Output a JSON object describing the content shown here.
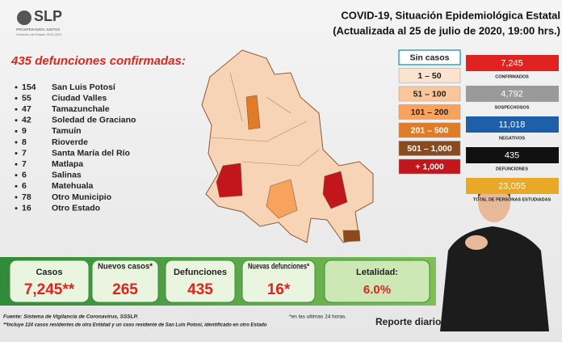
{
  "logo": {
    "mark": "SLP",
    "slogan": "PROSPERAMOS JUNTOS",
    "government": "Gobierno del Estado 2015-2021"
  },
  "header": {
    "title": "COVID-19, Situación Epidemiológica Estatal",
    "subtitle": "(Actualizada al 25 de julio de 2020, 19:00 hrs.)"
  },
  "deaths": {
    "heading": "435 defunciones confirmadas:",
    "rows": [
      [
        "154",
        "San Luis Potosí"
      ],
      [
        "55",
        "Ciudad Valles"
      ],
      [
        "47",
        "Tamazunchale"
      ],
      [
        "42",
        "Soledad de Graciano"
      ],
      [
        "9",
        "Tamuín"
      ],
      [
        "8",
        "Rioverde"
      ],
      [
        "7",
        "Santa María del Río"
      ],
      [
        "7",
        "Matlapa"
      ],
      [
        "6",
        "Salinas"
      ],
      [
        "6",
        "Matehuala"
      ],
      [
        "78",
        "Otro Municipio"
      ],
      [
        "16",
        "Otro Estado"
      ]
    ]
  },
  "legend": [
    {
      "label": "Sin casos",
      "color": "#ffffff"
    },
    {
      "label": "1 – 50",
      "color": "#fde3cf"
    },
    {
      "label": "51 – 100",
      "color": "#fbc79a"
    },
    {
      "label": "101 – 200",
      "color": "#f7a35e"
    },
    {
      "label": "201 – 500",
      "color": "#e07c26"
    },
    {
      "label": "501 – 1,000",
      "color": "#8a4a1c"
    },
    {
      "label": "+ 1,000",
      "color": "#c0161c"
    }
  ],
  "stats": [
    {
      "value": "7,245",
      "label": "CONFIRMADOS",
      "color": "#e0231f"
    },
    {
      "value": "4,792",
      "label": "SOSPECHOSOS",
      "color": "#9a9a9a"
    },
    {
      "value": "11,018",
      "label": "NEGATIVOS",
      "color": "#1d5fa8"
    },
    {
      "value": "435",
      "label": "DEFUNCIONES",
      "color": "#111111"
    },
    {
      "value": "23,055",
      "label": "TOTAL DE PERSONAS ESTUDIADAS",
      "color": "#e9a825"
    }
  ],
  "summary": [
    {
      "label": "Casos",
      "value": "7,245**"
    },
    {
      "label": "Nuevos casos*",
      "value": "265"
    },
    {
      "label": "Defunciones",
      "value": "435"
    },
    {
      "label": "Nuevas defunciones*",
      "value": "16*"
    },
    {
      "label": "Letalidad:",
      "value": "6.0%"
    }
  ],
  "footer": {
    "source": "Fuente: Sistema de Vigilancia de Coronavirus, SSSLP.",
    "note": "**Incluye 124 casos residentes de otra Entidad y un caso residente de San Luis Potosí, identificado en otro Estado",
    "period": "*en las ultimas 24 horas.",
    "report": "Reporte diario"
  }
}
